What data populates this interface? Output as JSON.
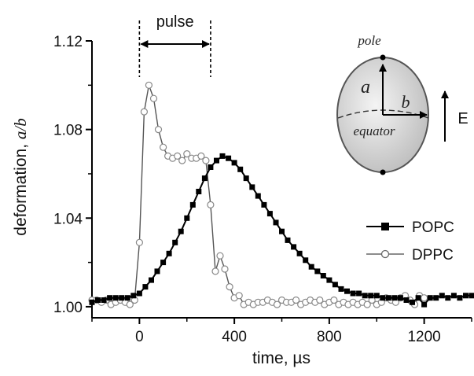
{
  "chart_data": {
    "type": "line",
    "xlabel": "time, µs",
    "ylabel_prefix": "deformation, ",
    "ylabel_var": "a/b",
    "xlim": [
      -200,
      1400
    ],
    "ylim": [
      0.995,
      1.12
    ],
    "xticks": [
      0,
      400,
      800,
      1200
    ],
    "yticks": [
      1.0,
      1.04,
      1.08,
      1.12
    ],
    "xtick_labels": [
      "0",
      "400",
      "800",
      "1200"
    ],
    "ytick_labels": [
      "1.00",
      "1.04",
      "1.08",
      "1.12"
    ],
    "grid": false,
    "legend_position": "right",
    "series": [
      {
        "name": "POPC",
        "marker": "filled-square",
        "color": "#000000",
        "x": [
          -200,
          -175,
          -150,
          -125,
          -100,
          -75,
          -50,
          -25,
          0,
          25,
          50,
          75,
          100,
          125,
          150,
          175,
          200,
          225,
          250,
          275,
          300,
          325,
          350,
          375,
          400,
          425,
          450,
          475,
          500,
          525,
          550,
          575,
          600,
          625,
          650,
          675,
          700,
          725,
          750,
          775,
          800,
          825,
          850,
          875,
          900,
          925,
          950,
          975,
          1000,
          1025,
          1050,
          1075,
          1100,
          1125,
          1150,
          1175,
          1200,
          1225,
          1250,
          1275,
          1300,
          1325,
          1350,
          1375,
          1400
        ],
        "y": [
          1.002,
          1.003,
          1.003,
          1.004,
          1.004,
          1.004,
          1.004,
          1.005,
          1.006,
          1.009,
          1.012,
          1.016,
          1.02,
          1.024,
          1.029,
          1.034,
          1.04,
          1.046,
          1.052,
          1.058,
          1.063,
          1.066,
          1.068,
          1.067,
          1.065,
          1.062,
          1.058,
          1.054,
          1.05,
          1.046,
          1.042,
          1.038,
          1.034,
          1.03,
          1.027,
          1.024,
          1.021,
          1.018,
          1.016,
          1.014,
          1.012,
          1.01,
          1.008,
          1.007,
          1.006,
          1.006,
          1.005,
          1.005,
          1.005,
          1.004,
          1.004,
          1.004,
          1.004,
          1.003,
          1.002,
          1.004,
          1.001,
          1.004,
          1.004,
          1.005,
          1.004,
          1.005,
          1.004,
          1.005,
          1.005
        ]
      },
      {
        "name": "DPPC",
        "marker": "open-circle",
        "color": "#888888",
        "x": [
          -200,
          -180,
          -160,
          -140,
          -120,
          -100,
          -80,
          -60,
          -40,
          -20,
          0,
          20,
          40,
          60,
          80,
          100,
          120,
          140,
          160,
          180,
          200,
          220,
          240,
          260,
          280,
          300,
          320,
          340,
          360,
          380,
          400,
          420,
          440,
          460,
          480,
          500,
          520,
          540,
          560,
          580,
          600,
          620,
          640,
          660,
          680,
          700,
          720,
          740,
          760,
          780,
          800,
          820,
          840,
          860,
          880,
          900,
          920,
          940,
          960,
          980,
          1000,
          1020,
          1040,
          1060,
          1080,
          1100,
          1120,
          1140,
          1160,
          1180,
          1200
        ],
        "y": [
          1.003,
          1.003,
          1.002,
          1.003,
          1.001,
          1.002,
          1.003,
          1.002,
          1.001,
          1.003,
          1.029,
          1.088,
          1.1,
          1.094,
          1.08,
          1.072,
          1.068,
          1.067,
          1.068,
          1.066,
          1.069,
          1.067,
          1.067,
          1.068,
          1.066,
          1.046,
          1.016,
          1.023,
          1.017,
          1.009,
          1.004,
          1.005,
          1.001,
          1.002,
          1.001,
          1.002,
          1.002,
          1.003,
          1.002,
          1.001,
          1.003,
          1.002,
          1.002,
          1.003,
          1.001,
          1.002,
          1.003,
          1.002,
          1.003,
          1.001,
          1.002,
          1.003,
          1.001,
          1.002,
          1.001,
          1.002,
          1.001,
          1.002,
          1.001,
          1.003,
          1.001,
          1.002,
          1.004,
          1.003,
          1.002,
          1.004,
          1.005,
          1.003,
          1.001,
          1.005,
          1.004
        ]
      }
    ],
    "annotation": {
      "pulse_label": "pulse",
      "pulse_start": 0,
      "pulse_end": 300
    }
  },
  "inset": {
    "pole_label": "pole",
    "a_label": "a",
    "b_label": "b",
    "equator_label": "equator",
    "field_label": "E"
  }
}
